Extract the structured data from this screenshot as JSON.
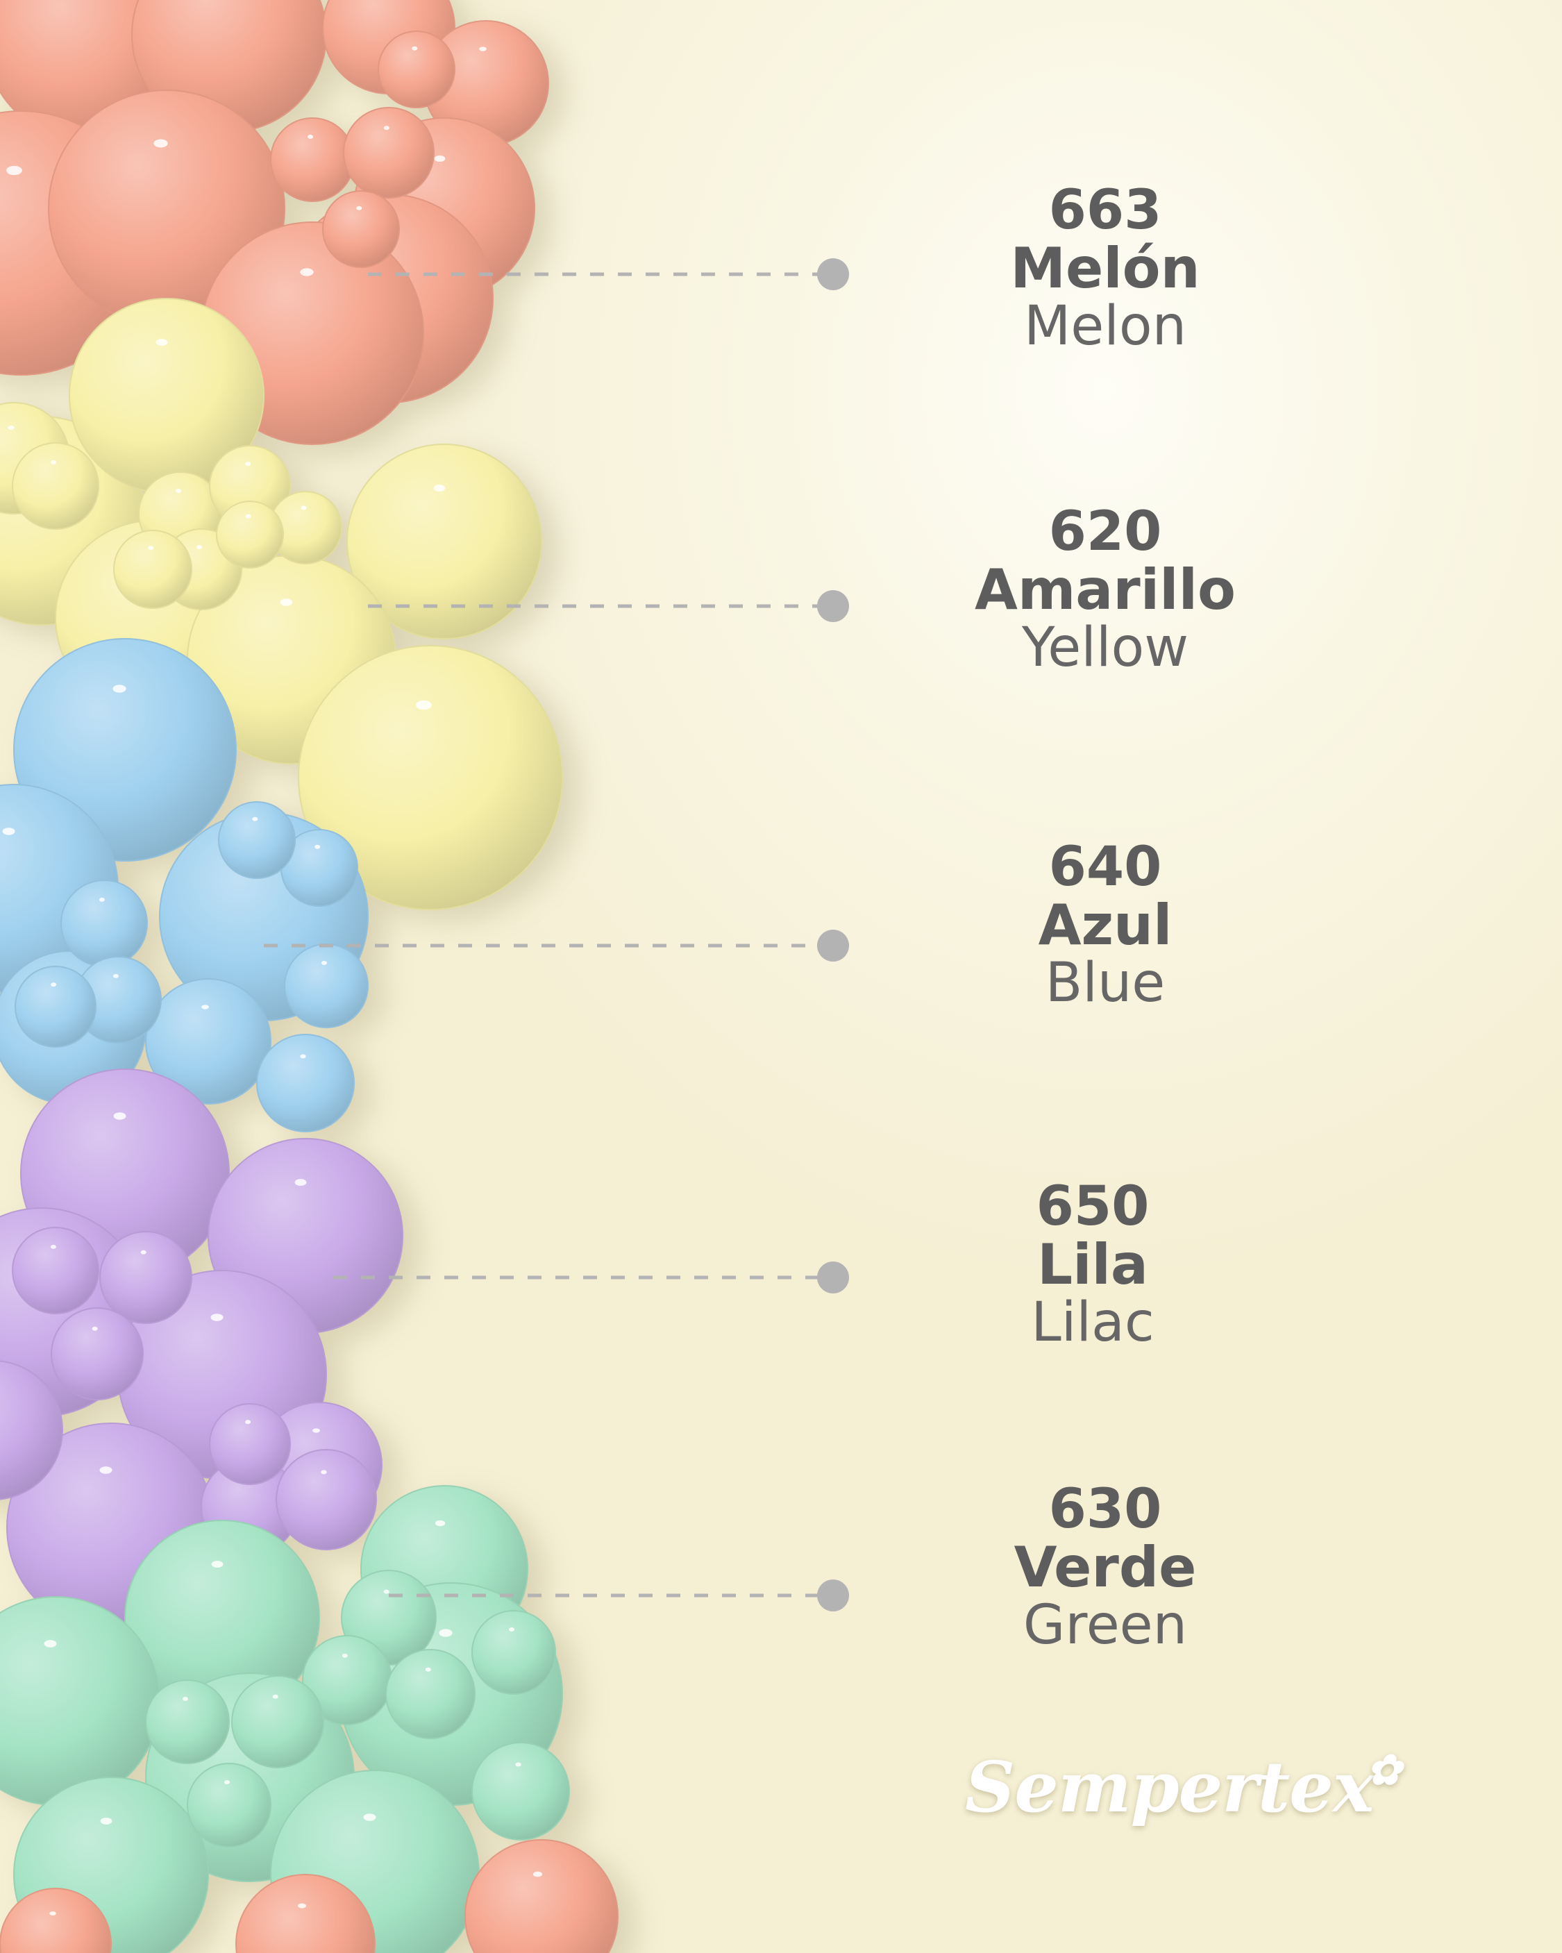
{
  "colors": [
    {
      "code": "663",
      "name_es": "Melón",
      "name_en": "Melon",
      "hex": "#f5a58e"
    },
    {
      "code": "620",
      "name_es": "Amarillo",
      "name_en": "Yellow",
      "hex": "#f7f0a8"
    },
    {
      "code": "640",
      "name_es": "Azul",
      "name_en": "Blue",
      "hex": "#9fd1ef"
    },
    {
      "code": "650",
      "name_es": "Lila",
      "name_en": "Lilac",
      "hex": "#c8a9e8"
    },
    {
      "code": "630",
      "name_es": "Verde",
      "name_en": "Green",
      "hex": "#a4e3c4"
    }
  ],
  "brand": {
    "logo_text": "Sempertex"
  },
  "palette": {
    "text": "#5d5d5d",
    "leader": "#b3b3b3",
    "background": "#f8f4dc"
  }
}
